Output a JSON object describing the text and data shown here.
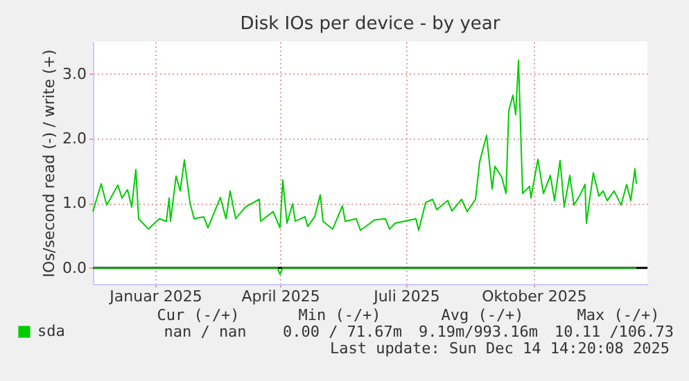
{
  "chart_data": {
    "type": "line",
    "title": "Disk IOs per device - by year",
    "ylabel": "IOs/second read (-) / write (+)",
    "xlim": [
      "2024-11-17",
      "2025-12-22"
    ],
    "xticks": [
      {
        "value": "2025-01-01",
        "label": "Januar 2025"
      },
      {
        "value": "2025-04-01",
        "label": "April 2025"
      },
      {
        "value": "2025-07-01",
        "label": "Juli 2025"
      },
      {
        "value": "2025-10-01",
        "label": "Oktober 2025"
      }
    ],
    "ylim": [
      -0.25,
      3.5
    ],
    "yticks": [
      {
        "value": 0,
        "label": "0.0"
      },
      {
        "value": 1,
        "label": "1.0"
      },
      {
        "value": 2,
        "label": "2.0"
      },
      {
        "value": 3,
        "label": "3.0"
      }
    ],
    "grid": true,
    "legend": "bottom left",
    "line_style": "solid",
    "marker": "none",
    "ref_lines": [
      {
        "axis": "y",
        "value": 0,
        "color": "#000000"
      }
    ],
    "series": [
      {
        "name": "sda",
        "color": "#00cc00",
        "x": [
          "2024-11-17",
          "2024-11-23",
          "2024-11-27",
          "2024-12-05",
          "2024-12-08",
          "2024-12-12",
          "2024-12-15",
          "2024-12-18",
          "2024-12-20",
          "2024-12-27",
          "2025-01-04",
          "2025-01-09",
          "2025-01-11",
          "2025-01-12",
          "2025-01-16",
          "2025-01-19",
          "2025-01-22",
          "2025-01-26",
          "2025-01-29",
          "2025-02-05",
          "2025-02-08",
          "2025-02-17",
          "2025-02-21",
          "2025-02-24",
          "2025-02-28",
          "2025-03-07",
          "2025-03-17",
          "2025-03-18",
          "2025-03-27",
          "2025-04-01",
          "2025-04-03",
          "2025-04-06",
          "2025-04-10",
          "2025-04-12",
          "2025-04-19",
          "2025-04-21",
          "2025-04-26",
          "2025-04-30",
          "2025-05-02",
          "2025-05-09",
          "2025-05-16",
          "2025-05-18",
          "2025-05-26",
          "2025-05-29",
          "2025-06-05",
          "2025-06-08",
          "2025-06-16",
          "2025-06-19",
          "2025-06-23",
          "2025-07-08",
          "2025-07-10",
          "2025-07-15",
          "2025-07-20",
          "2025-07-23",
          "2025-07-31",
          "2025-08-03",
          "2025-08-10",
          "2025-08-14",
          "2025-08-20",
          "2025-08-23",
          "2025-08-28",
          "2025-09-01",
          "2025-09-03",
          "2025-09-08",
          "2025-09-11",
          "2025-09-13",
          "2025-09-16",
          "2025-09-18",
          "2025-09-20",
          "2025-09-23",
          "2025-09-28",
          "2025-09-29",
          "2025-10-04",
          "2025-10-08",
          "2025-10-13",
          "2025-10-16",
          "2025-10-20",
          "2025-10-23",
          "2025-10-27",
          "2025-10-30",
          "2025-11-03",
          "2025-11-07",
          "2025-11-08",
          "2025-11-13",
          "2025-11-17",
          "2025-11-20",
          "2025-11-23",
          "2025-11-28",
          "2025-12-03",
          "2025-12-07",
          "2025-12-10",
          "2025-12-13",
          "2025-12-14"
        ],
        "values": [
          0.87,
          1.3,
          0.97,
          1.28,
          1.08,
          1.21,
          0.94,
          1.52,
          0.76,
          0.6,
          0.76,
          0.72,
          1.08,
          0.72,
          1.42,
          1.19,
          1.67,
          1.01,
          0.76,
          0.79,
          0.62,
          1.09,
          0.76,
          1.19,
          0.76,
          0.94,
          1.06,
          0.72,
          0.87,
          0.62,
          1.36,
          0.69,
          0.99,
          0.72,
          0.79,
          0.64,
          0.79,
          1.13,
          0.72,
          0.6,
          0.96,
          0.72,
          0.76,
          0.58,
          0.69,
          0.74,
          0.76,
          0.6,
          0.69,
          0.76,
          0.58,
          1.01,
          1.06,
          0.9,
          1.04,
          0.88,
          1.06,
          0.87,
          1.06,
          1.64,
          2.05,
          1.22,
          1.57,
          1.4,
          1.15,
          2.43,
          2.67,
          2.37,
          3.21,
          1.15,
          1.26,
          1.08,
          1.68,
          1.15,
          1.43,
          1.04,
          1.66,
          0.94,
          1.43,
          0.97,
          1.11,
          1.29,
          0.69,
          1.47,
          1.11,
          1.19,
          1.04,
          1.19,
          0.97,
          1.29,
          1.04,
          1.53,
          1.3
        ]
      },
      {
        "color": "#00cc00",
        "x": [
          "2024-11-17",
          "2025-03-30",
          "2025-04-01",
          "2025-04-03",
          "2025-12-14"
        ],
        "values": [
          0,
          0,
          -0.1,
          0,
          0
        ]
      }
    ],
    "annotations": [
      "Cur (-/+)",
      "Min (-/+)",
      "Avg (-/+)",
      "Max (-/+)",
      "nan /   nan",
      "0.00 / 71.67m",
      "9.19m/993.16m",
      "10.11 /106.73",
      "Last update: Sun Dec 14 14:20:08 2025"
    ]
  }
}
